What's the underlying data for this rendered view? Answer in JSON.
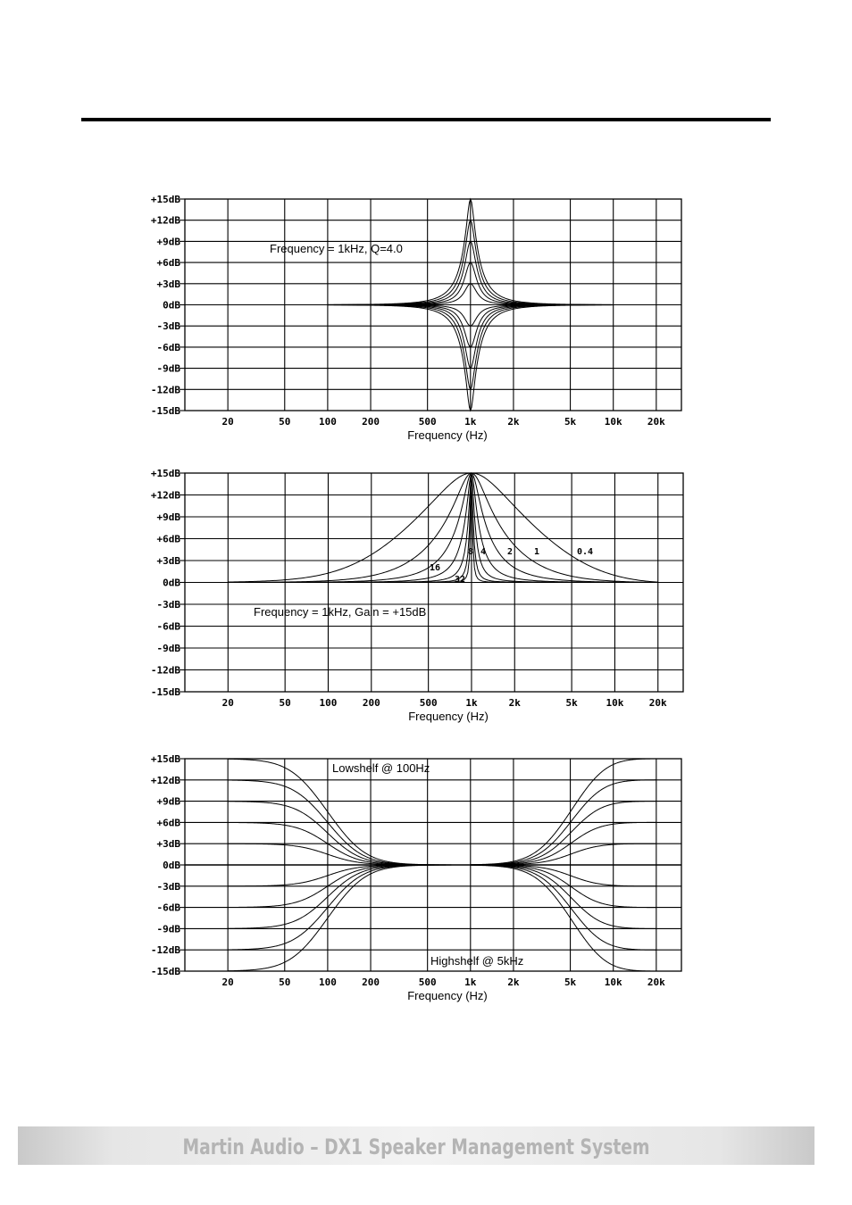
{
  "footer": {
    "text": "Martin Audio – DX1 Speaker Management System"
  },
  "chart_data": [
    {
      "type": "line",
      "title": "",
      "annotation": "Frequency = 1kHz, Q=4.0",
      "xlabel": "Frequency (Hz)",
      "ylabel": "",
      "xscale": "log",
      "xlim": [
        10,
        30000
      ],
      "ylim": [
        -15,
        15
      ],
      "x_ticks": [
        20,
        50,
        100,
        200,
        500,
        1000,
        2000,
        5000,
        10000,
        20000
      ],
      "x_tick_labels": [
        "20",
        "50",
        "100",
        "200",
        "500",
        "1k",
        "2k",
        "5k",
        "10k",
        "20k"
      ],
      "y_ticks": [
        15,
        12,
        9,
        6,
        3,
        0,
        -3,
        -6,
        -9,
        -12,
        -15
      ],
      "y_tick_labels": [
        "+15dB",
        "+12dB",
        "+9dB",
        "+6dB",
        "+3dB",
        "0dB",
        "-3dB",
        "-6dB",
        "-9dB",
        "-12dB",
        "-15dB"
      ],
      "grid": true,
      "filter": "peaking",
      "center_hz": 1000,
      "q": 4.0,
      "x_range": [
        100,
        10000
      ],
      "gains_db": [
        15,
        12,
        9,
        6,
        3,
        0,
        -3,
        -6,
        -9,
        -12,
        -15
      ]
    },
    {
      "type": "line",
      "title": "",
      "annotation": "Frequency = 1kHz, Gain = +15dB",
      "xlabel": "Frequency (Hz)",
      "ylabel": "",
      "xscale": "log",
      "xlim": [
        10,
        30000
      ],
      "ylim": [
        -15,
        15
      ],
      "x_ticks": [
        20,
        50,
        100,
        200,
        500,
        1000,
        2000,
        5000,
        10000,
        20000
      ],
      "x_tick_labels": [
        "20",
        "50",
        "100",
        "200",
        "500",
        "1k",
        "2k",
        "5k",
        "10k",
        "20k"
      ],
      "y_ticks": [
        15,
        12,
        9,
        6,
        3,
        0,
        -3,
        -6,
        -9,
        -12,
        -15
      ],
      "y_tick_labels": [
        "+15dB",
        "+12dB",
        "+9dB",
        "+6dB",
        "+3dB",
        "0dB",
        "-3dB",
        "-6dB",
        "-9dB",
        "-12dB",
        "-15dB"
      ],
      "grid": true,
      "filter": "peaking",
      "center_hz": 1000,
      "gain_db": 15,
      "x_range": [
        20,
        20000
      ],
      "series": [
        {
          "name": "0.4",
          "q": 0.4
        },
        {
          "name": "1",
          "q": 1
        },
        {
          "name": "2",
          "q": 2
        },
        {
          "name": "4",
          "q": 4
        },
        {
          "name": "8",
          "q": 8
        },
        {
          "name": "16",
          "q": 16
        },
        {
          "name": "32",
          "q": 32
        }
      ]
    },
    {
      "type": "line",
      "title": "",
      "annotations": [
        "Lowshelf @ 100Hz",
        "Highshelf @ 5kHz"
      ],
      "xlabel": "Frequency (Hz)",
      "ylabel": "",
      "xscale": "log",
      "xlim": [
        10,
        30000
      ],
      "ylim": [
        -15,
        15
      ],
      "x_ticks": [
        20,
        50,
        100,
        200,
        500,
        1000,
        2000,
        5000,
        10000,
        20000
      ],
      "x_tick_labels": [
        "20",
        "50",
        "100",
        "200",
        "500",
        "1k",
        "2k",
        "5k",
        "10k",
        "20k"
      ],
      "y_ticks": [
        15,
        12,
        9,
        6,
        3,
        0,
        -3,
        -6,
        -9,
        -12,
        -15
      ],
      "y_tick_labels": [
        "+15dB",
        "+12dB",
        "+9dB",
        "+6dB",
        "+3dB",
        "0dB",
        "-3dB",
        "-6dB",
        "-9dB",
        "-12dB",
        "-15dB"
      ],
      "grid": true,
      "lowshelf": {
        "corner_hz": 100,
        "x_range": [
          20,
          1000
        ],
        "gains_db": [
          15,
          12,
          9,
          6,
          3,
          -3,
          -6,
          -9,
          -12,
          -15
        ]
      },
      "highshelf": {
        "corner_hz": 5000,
        "x_range": [
          1000,
          20000
        ],
        "gains_db": [
          15,
          12,
          9,
          6,
          3,
          -3,
          -6,
          -9,
          -12,
          -15
        ]
      }
    }
  ]
}
